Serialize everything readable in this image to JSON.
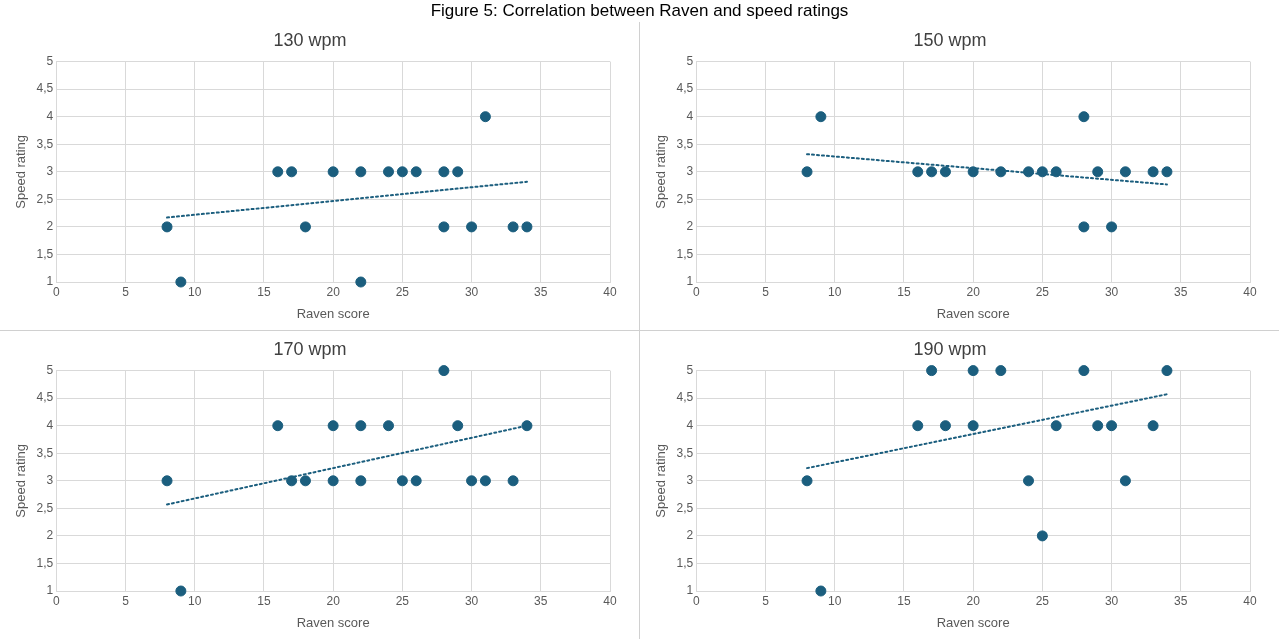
{
  "chart_data": [
    {
      "type": "scatter",
      "title": "130 wpm",
      "xlabel": "Raven score",
      "ylabel": "Speed rating",
      "annotations": [
        "Figure 5: Correlation between Raven and speed ratings"
      ],
      "xlim": [
        0,
        40
      ],
      "xticks": [
        0,
        5,
        10,
        15,
        20,
        25,
        30,
        35,
        40
      ],
      "ylim": [
        1,
        5
      ],
      "yticks": [
        1,
        {
          "value": 1.5,
          "label": "1,5"
        },
        2,
        {
          "value": 2.5,
          "label": "2,5"
        },
        3,
        {
          "value": 3.5,
          "label": "3,5"
        },
        4,
        {
          "value": 4.5,
          "label": "4,5"
        },
        5
      ],
      "grid": true,
      "legend": false,
      "marker": "circle",
      "series": [
        {
          "color": "#1b5e7e",
          "x": [
            8,
            9,
            16,
            17,
            18,
            20,
            22,
            22,
            24,
            25,
            26,
            28,
            28,
            29,
            30,
            31,
            33,
            34
          ],
          "values": [
            2,
            1,
            3,
            3,
            2,
            3,
            3,
            1,
            3,
            3,
            3,
            3,
            2,
            3,
            2,
            4,
            2,
            2
          ]
        },
        {
          "type": "line",
          "color": "#1b5e7e",
          "line_style": "dotted",
          "marker": "none",
          "x": [
            8,
            34
          ],
          "values": [
            2.17,
            2.82
          ]
        }
      ]
    },
    {
      "type": "scatter",
      "title": "150 wpm",
      "xlabel": "Raven score",
      "ylabel": "Speed rating",
      "xlim": [
        0,
        40
      ],
      "xticks": [
        0,
        5,
        10,
        15,
        20,
        25,
        30,
        35,
        40
      ],
      "ylim": [
        1,
        5
      ],
      "yticks": [
        1,
        {
          "value": 1.5,
          "label": "1,5"
        },
        2,
        {
          "value": 2.5,
          "label": "2,5"
        },
        3,
        {
          "value": 3.5,
          "label": "3,5"
        },
        4,
        {
          "value": 4.5,
          "label": "4,5"
        },
        5
      ],
      "grid": true,
      "legend": false,
      "marker": "circle",
      "series": [
        {
          "color": "#1b5e7e",
          "x": [
            8,
            9,
            16,
            17,
            18,
            20,
            22,
            24,
            25,
            26,
            28,
            28,
            29,
            30,
            31,
            33,
            34
          ],
          "values": [
            3,
            4,
            3,
            3,
            3,
            3,
            3,
            3,
            3,
            3,
            4,
            2,
            3,
            2,
            3,
            3,
            3
          ]
        },
        {
          "type": "line",
          "color": "#1b5e7e",
          "line_style": "dotted",
          "marker": "none",
          "x": [
            8,
            34
          ],
          "values": [
            3.32,
            2.77
          ]
        }
      ]
    },
    {
      "type": "scatter",
      "title": "170 wpm",
      "xlabel": "Raven score",
      "ylabel": "Speed rating",
      "xlim": [
        0,
        40
      ],
      "xticks": [
        0,
        5,
        10,
        15,
        20,
        25,
        30,
        35,
        40
      ],
      "ylim": [
        1,
        5
      ],
      "yticks": [
        1,
        {
          "value": 1.5,
          "label": "1,5"
        },
        2,
        {
          "value": 2.5,
          "label": "2,5"
        },
        3,
        {
          "value": 3.5,
          "label": "3,5"
        },
        4,
        {
          "value": 4.5,
          "label": "4,5"
        },
        5
      ],
      "grid": true,
      "legend": false,
      "marker": "circle",
      "series": [
        {
          "color": "#1b5e7e",
          "x": [
            8,
            9,
            16,
            17,
            18,
            20,
            20,
            22,
            22,
            24,
            25,
            26,
            28,
            29,
            30,
            31,
            33,
            34
          ],
          "values": [
            3,
            1,
            4,
            3,
            3,
            4,
            3,
            4,
            3,
            4,
            3,
            3,
            5,
            4,
            3,
            3,
            3,
            4
          ]
        },
        {
          "type": "line",
          "color": "#1b5e7e",
          "line_style": "dotted",
          "marker": "none",
          "x": [
            8,
            34
          ],
          "values": [
            2.57,
            4.0
          ]
        }
      ]
    },
    {
      "type": "scatter",
      "title": "190 wpm",
      "xlabel": "Raven score",
      "ylabel": "Speed rating",
      "xlim": [
        0,
        40
      ],
      "xticks": [
        0,
        5,
        10,
        15,
        20,
        25,
        30,
        35,
        40
      ],
      "ylim": [
        1,
        5
      ],
      "yticks": [
        1,
        {
          "value": 1.5,
          "label": "1,5"
        },
        2,
        {
          "value": 2.5,
          "label": "2,5"
        },
        3,
        {
          "value": 3.5,
          "label": "3,5"
        },
        4,
        {
          "value": 4.5,
          "label": "4,5"
        },
        5
      ],
      "grid": true,
      "legend": false,
      "marker": "circle",
      "series": [
        {
          "color": "#1b5e7e",
          "x": [
            8,
            9,
            16,
            17,
            18,
            20,
            20,
            22,
            24,
            25,
            26,
            28,
            29,
            30,
            31,
            33,
            34
          ],
          "values": [
            3,
            1,
            4,
            5,
            4,
            5,
            4,
            5,
            3,
            2,
            4,
            5,
            4,
            4,
            3,
            4,
            5
          ]
        },
        {
          "type": "line",
          "color": "#1b5e7e",
          "line_style": "dotted",
          "marker": "none",
          "x": [
            8,
            34
          ],
          "values": [
            3.23,
            4.57
          ]
        }
      ]
    }
  ]
}
